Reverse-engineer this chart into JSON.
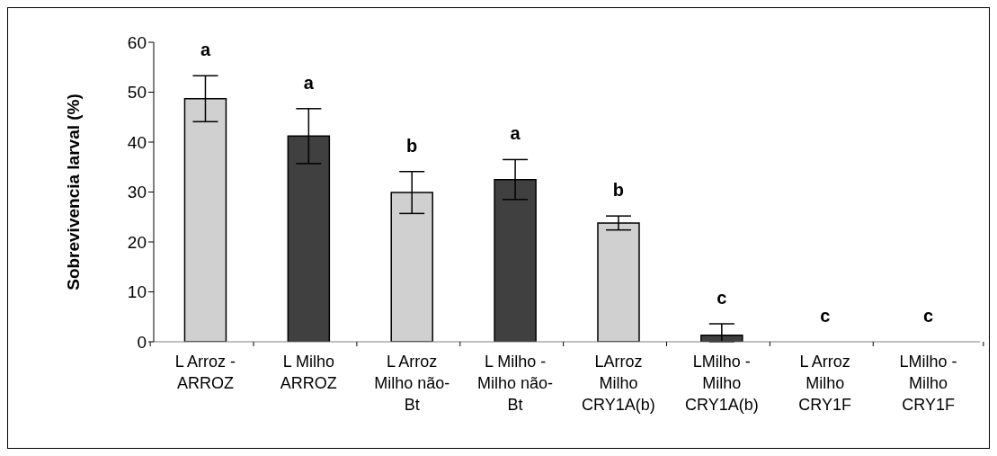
{
  "chart_data": {
    "type": "bar",
    "ylabel": "Sobrevivencia larval (%)",
    "categories": [
      "L Arroz - ARROZ",
      "L Milho ARROZ",
      "L Arroz Milho não-Bt",
      "L Milho - Milho não-Bt",
      "LArroz Milho CRY1A(b)",
      "LMilho - Milho CRY1A(b)",
      "L Arroz Milho CRY1F",
      "LMilho - Milho CRY1F"
    ],
    "values": [
      48.7,
      41.2,
      29.9,
      32.5,
      23.8,
      1.3,
      0,
      0
    ],
    "errors": [
      4.6,
      5.5,
      4.2,
      4,
      1.4,
      [
        0,
        3.6
      ],
      0,
      0
    ],
    "colors": [
      "#d0d0d0",
      "#404040",
      "#d0d0d0",
      "#404040",
      "#d0d0d0",
      "#404040",
      "#d0d0d0",
      "#404040"
    ],
    "ylim": [
      0,
      60
    ],
    "yticks": [
      0,
      10,
      20,
      30,
      40,
      50,
      60
    ],
    "grid": false,
    "legend": false,
    "annotations": [
      "a",
      "a",
      "b",
      "a",
      "b",
      "c",
      "c",
      "c"
    ]
  }
}
